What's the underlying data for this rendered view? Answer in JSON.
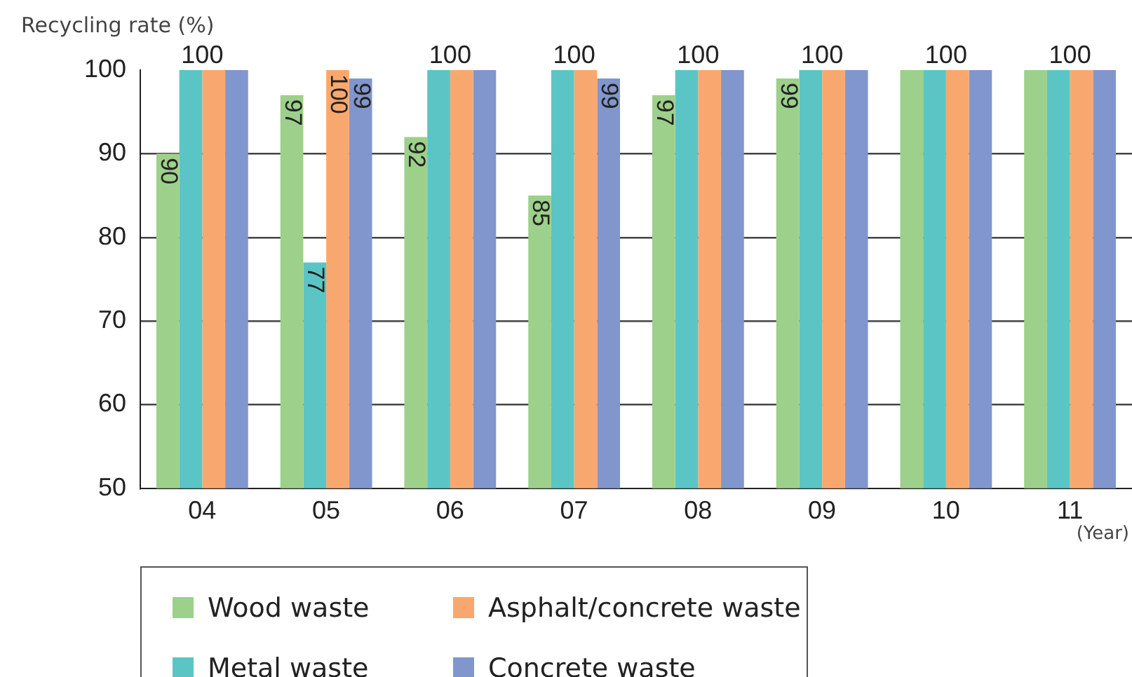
{
  "chart_data": {
    "type": "bar",
    "ylabel": "Recycling rate (%)",
    "xlabel": "(Year)",
    "categories": [
      "04",
      "05",
      "06",
      "07",
      "08",
      "09",
      "10",
      "11"
    ],
    "series": [
      {
        "name": "Wood waste",
        "color": "#9dd08a",
        "values": [
          90,
          97,
          92,
          85,
          97,
          99,
          100,
          100
        ],
        "value_labels": [
          "90",
          "97",
          "92",
          "85",
          "97",
          "99",
          null,
          null
        ]
      },
      {
        "name": "Metal waste",
        "color": "#5bc5c6",
        "values": [
          100,
          77,
          100,
          100,
          100,
          100,
          100,
          100
        ],
        "value_labels": [
          null,
          "77",
          null,
          null,
          null,
          null,
          null,
          null
        ]
      },
      {
        "name": "Asphalt/concrete waste",
        "color": "#f8a86e",
        "values": [
          100,
          100,
          100,
          100,
          100,
          100,
          100,
          100
        ],
        "value_labels": [
          null,
          "100",
          null,
          null,
          null,
          null,
          null,
          null
        ]
      },
      {
        "name": "Concrete waste",
        "color": "#8096cd",
        "values": [
          100,
          99,
          100,
          99,
          100,
          100,
          100,
          100
        ],
        "value_labels": [
          null,
          "99",
          null,
          "99",
          null,
          null,
          null,
          null
        ]
      }
    ],
    "annotations": [
      {
        "text": "100",
        "x": "04",
        "y": 100
      },
      {
        "text": "100",
        "x": "06",
        "y": 100
      },
      {
        "text": "100",
        "x": "07",
        "y": 100
      },
      {
        "text": "100",
        "x": "08",
        "y": 100
      },
      {
        "text": "100",
        "x": "09",
        "y": 100
      },
      {
        "text": "100",
        "x": "10",
        "y": 100
      },
      {
        "text": "100",
        "x": "11",
        "y": 100
      }
    ],
    "ylim": [
      50,
      100
    ],
    "yticks": [
      50,
      60,
      70,
      80,
      90,
      100
    ],
    "grid": "y",
    "legend": "bottom"
  }
}
